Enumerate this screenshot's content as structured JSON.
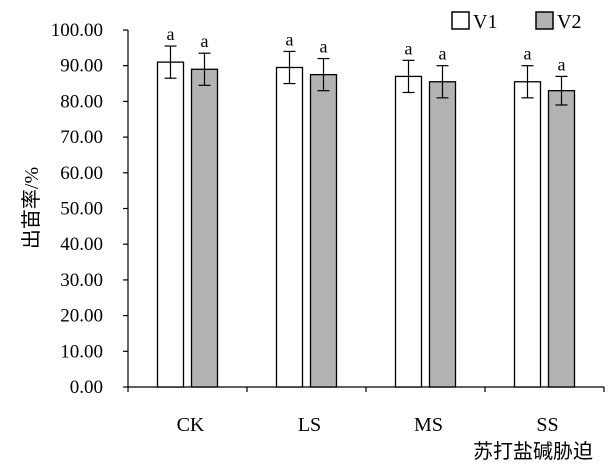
{
  "chart_data": {
    "type": "bar",
    "title": "",
    "xlabel": "苏打盐碱胁迫",
    "ylabel": "出苗率/%",
    "categories": [
      "CK",
      "LS",
      "MS",
      "SS"
    ],
    "ylim": [
      0,
      100
    ],
    "ytick_step": 10,
    "ytick_decimals": 2,
    "grid": false,
    "legend_position": "top-right",
    "series": [
      {
        "name": "V1",
        "color": "#ffffff",
        "values": [
          91.0,
          89.5,
          87.0,
          85.5
        ],
        "errors": [
          4.5,
          4.5,
          4.5,
          4.5
        ],
        "labels": [
          "a",
          "a",
          "a",
          "a"
        ]
      },
      {
        "name": "V2",
        "color": "#b3b3b3",
        "values": [
          89.0,
          87.5,
          85.5,
          83.0
        ],
        "errors": [
          4.5,
          4.5,
          4.5,
          4.0
        ],
        "labels": [
          "a",
          "a",
          "a",
          "a"
        ]
      }
    ]
  }
}
